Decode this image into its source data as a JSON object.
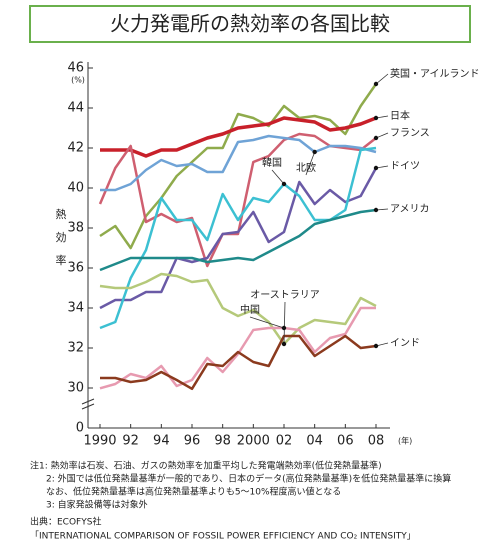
{
  "chart_data": {
    "type": "line",
    "title": "火力発電所の熱効率の各国比較",
    "y_label": "熱効率",
    "y_unit": "(%)",
    "x_unit": "(年)",
    "x": [
      1990,
      1991,
      1992,
      1993,
      1994,
      1995,
      1996,
      1997,
      1998,
      1999,
      2000,
      2001,
      2002,
      2003,
      2004,
      2005,
      2006,
      2007,
      2008
    ],
    "xlim": [
      1990,
      2008
    ],
    "xticks": [
      1990,
      {
        "value": 1992,
        "label": "92"
      },
      {
        "value": 1994,
        "label": "94"
      },
      {
        "value": 1996,
        "label": "96"
      },
      {
        "value": 1998,
        "label": "98"
      },
      2000,
      {
        "value": 2002,
        "label": "02"
      },
      {
        "value": 2004,
        "label": "04"
      },
      {
        "value": 2006,
        "label": "06"
      },
      {
        "value": 2008,
        "label": "08"
      }
    ],
    "ylim": [
      0,
      46
    ],
    "axis_break": [
      0,
      30
    ],
    "yticks": [
      0,
      30,
      32,
      34,
      36,
      38,
      40,
      42,
      44,
      46
    ],
    "grid": false,
    "series": [
      {
        "name": "英国・アイルランド",
        "color": "#8fab4c",
        "values": [
          37.6,
          38.1,
          37.0,
          38.6,
          39.5,
          40.6,
          41.3,
          42.0,
          42.0,
          43.7,
          43.5,
          43.1,
          44.1,
          43.5,
          43.6,
          43.4,
          42.7,
          44.1,
          45.2
        ]
      },
      {
        "name": "日本",
        "color": "#c8202a",
        "values": [
          41.9,
          41.9,
          41.9,
          41.6,
          41.9,
          41.9,
          42.2,
          42.5,
          42.7,
          43.0,
          43.1,
          43.2,
          43.5,
          43.4,
          43.3,
          42.9,
          43.0,
          43.2,
          43.5
        ]
      },
      {
        "name": "フランス",
        "color": "#cf5f70",
        "values": [
          39.2,
          41.0,
          42.1,
          38.3,
          38.7,
          38.3,
          38.5,
          36.1,
          37.7,
          37.7,
          41.3,
          41.6,
          42.4,
          42.7,
          42.6,
          42.1,
          42.0,
          41.9,
          42.5
        ]
      },
      {
        "name": "北欧",
        "color": "#6fa3d6",
        "values": [
          39.9,
          39.9,
          40.2,
          40.9,
          41.4,
          41.1,
          41.2,
          40.8,
          40.8,
          42.3,
          42.4,
          42.6,
          42.5,
          42.4,
          41.8,
          42.1,
          42.1,
          42.0,
          41.8
        ]
      },
      {
        "name": "ドイツ",
        "color": "#6a5aa6",
        "values": [
          34.0,
          34.4,
          34.4,
          34.8,
          34.8,
          36.5,
          36.3,
          36.5,
          37.7,
          37.8,
          38.8,
          37.3,
          37.8,
          40.3,
          39.2,
          39.9,
          39.3,
          39.6,
          41.0
        ]
      },
      {
        "name": "韓国",
        "color": "#3cc0d2",
        "values": [
          33.0,
          33.3,
          35.5,
          36.9,
          39.5,
          38.4,
          38.4,
          37.4,
          39.7,
          38.4,
          39.5,
          39.3,
          40.2,
          39.6,
          38.4,
          38.4,
          38.9,
          41.9,
          42.0
        ]
      },
      {
        "name": "アメリカ",
        "color": "#1f8a8a",
        "values": [
          35.9,
          36.2,
          36.5,
          36.5,
          36.5,
          36.5,
          36.5,
          36.3,
          36.4,
          36.5,
          36.4,
          36.8,
          37.2,
          37.6,
          38.2,
          38.4,
          38.6,
          38.8,
          38.9
        ]
      },
      {
        "name": "オーストラリア",
        "color": "#b5c97a",
        "values": [
          35.1,
          35.0,
          35.0,
          35.3,
          35.7,
          35.6,
          35.3,
          35.4,
          34.0,
          33.6,
          33.9,
          33.3,
          32.2,
          33.0,
          33.4,
          33.3,
          33.2,
          34.5,
          34.1
        ]
      },
      {
        "name": "中国",
        "color": "#e79ab0",
        "values": [
          29.8,
          30.2,
          30.7,
          30.5,
          31.1,
          30.1,
          30.4,
          31.5,
          30.8,
          31.7,
          32.9,
          33.0,
          33.0,
          32.9,
          31.8,
          32.5,
          32.7,
          34.0,
          34.0
        ]
      },
      {
        "name": "インド",
        "color": "#8b3a1e",
        "values": [
          30.5,
          30.5,
          30.3,
          30.4,
          30.8,
          30.4,
          29.4,
          31.2,
          31.1,
          31.8,
          31.3,
          31.1,
          32.6,
          32.6,
          31.6,
          32.1,
          32.6,
          32.0,
          32.1
        ]
      }
    ],
    "notes": [
      "注1: 熱効率は石炭、石油、ガスの熱効率を加重平均した発電端熱効率(低位発熱量基準)",
      "2: 外国では低位発熱量基準が一般的であり、日本のデータ(高位発熱量基準)を低位発熱量基準に換算",
      "なお、低位発熱量基準は高位発熱量基準よりも5～10%程度高い値となる",
      "3: 自家発設備等は対象外"
    ],
    "source": [
      "出典：ECOFYS社",
      "「INTERNATIONAL COMPARISON OF FOSSIL POWER EFFICIENCY AND CO₂ INTENSITY」"
    ]
  }
}
